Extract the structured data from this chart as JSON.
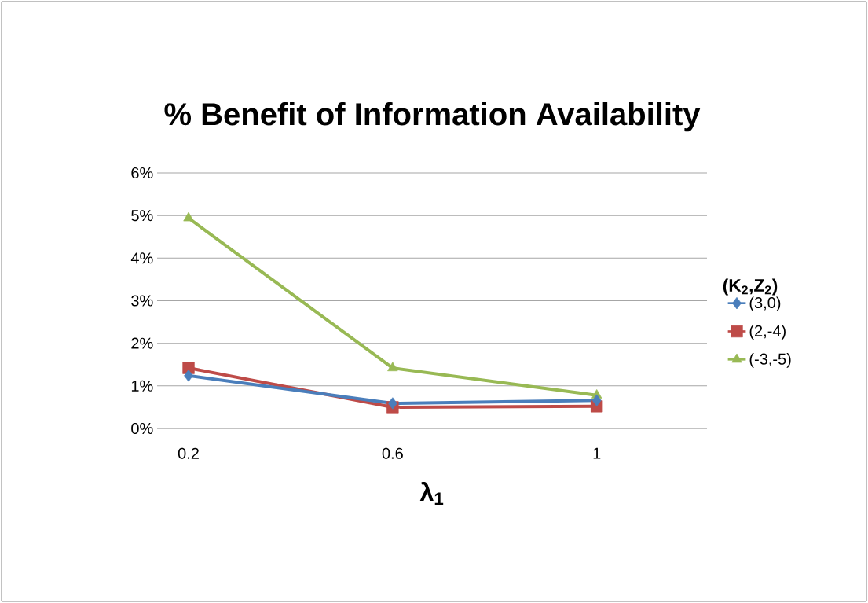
{
  "chart_data": {
    "type": "line",
    "title": "% Benefit of Information Availability",
    "xlabel": "**λ$_{1}$**",
    "legend_title": "**(K$_{2}$,Z$_{2}$)**",
    "categories": [
      "0.2",
      "0.6",
      "1"
    ],
    "series": [
      {
        "name": "(3,0)",
        "color": "#4a7ebb",
        "marker": "diamond",
        "values": [
          1.24,
          0.59,
          0.66
        ]
      },
      {
        "name": "(2,-4)",
        "color": "#be4b48",
        "marker": "square",
        "values": [
          1.42,
          0.5,
          0.52
        ]
      },
      {
        "name": "(-3,-5)",
        "color": "#98b954",
        "marker": "triangle",
        "values": [
          4.94,
          1.42,
          0.78
        ]
      }
    ],
    "ylim": [
      0,
      6
    ],
    "yticks": [
      {
        "value": 0,
        "label": "0%"
      },
      {
        "value": 1,
        "label": "1%"
      },
      {
        "value": 2,
        "label": "2%"
      },
      {
        "value": 3,
        "label": "3%"
      },
      {
        "value": 4,
        "label": "4%"
      },
      {
        "value": 5,
        "label": "5%"
      },
      {
        "value": 6,
        "label": "6%"
      }
    ],
    "grid": "y",
    "legend": "right"
  }
}
